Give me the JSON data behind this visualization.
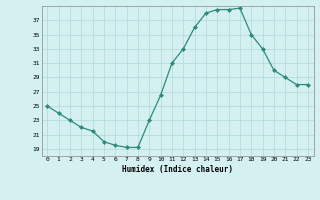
{
  "x": [
    0,
    1,
    2,
    3,
    4,
    5,
    6,
    7,
    8,
    9,
    10,
    11,
    12,
    13,
    14,
    15,
    16,
    17,
    18,
    19,
    20,
    21,
    22,
    23
  ],
  "y": [
    25,
    24,
    23,
    22,
    21.5,
    20,
    19.5,
    19.2,
    19.2,
    23,
    26.5,
    31,
    33,
    36,
    38,
    38.5,
    38.5,
    38.7,
    35,
    33,
    30,
    29,
    28,
    28
  ],
  "line_color": "#2e8b7a",
  "marker_color": "#2e8b7a",
  "bg_color": "#d4f0f0",
  "grid_color": "#b0d8d8",
  "xlabel": "Humidex (Indice chaleur)",
  "xlim": [
    -0.5,
    23.5
  ],
  "ylim": [
    18,
    39
  ],
  "yticks": [
    19,
    21,
    23,
    25,
    27,
    29,
    31,
    33,
    35,
    37
  ],
  "xticks": [
    0,
    1,
    2,
    3,
    4,
    5,
    6,
    7,
    8,
    9,
    10,
    11,
    12,
    13,
    14,
    15,
    16,
    17,
    18,
    19,
    20,
    21,
    22,
    23
  ]
}
